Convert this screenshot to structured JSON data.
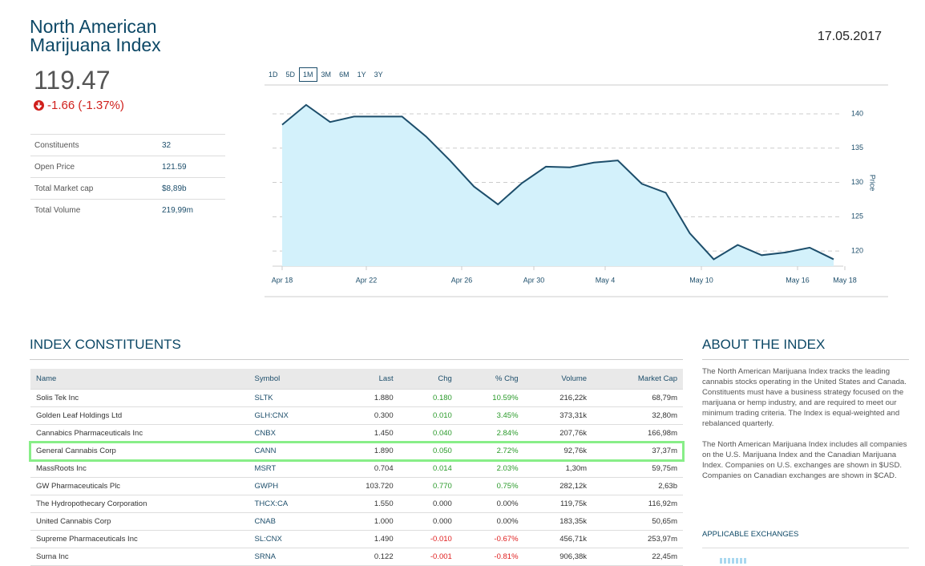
{
  "header": {
    "title": "North American Marijuana Index",
    "date": "17.05.2017",
    "price": "119.47",
    "change": "-1.66 (-1.37%)"
  },
  "stats": [
    {
      "label": "Constituents",
      "value": "32"
    },
    {
      "label": "Open Price",
      "value": "121.59"
    },
    {
      "label": "Total Market cap",
      "value": "$8,89b"
    },
    {
      "label": "Total Volume",
      "value": "219,99m"
    }
  ],
  "ranges": [
    "1D",
    "5D",
    "1M",
    "3M",
    "6M",
    "1Y",
    "3Y"
  ],
  "chart_data": {
    "type": "line",
    "values": [
      138.4,
      141.3,
      138.8,
      139.6,
      139.6,
      139.6,
      136.7,
      133.2,
      129.4,
      126.8,
      129.9,
      132.3,
      132.2,
      132.9,
      133.2,
      129.8,
      128.5,
      122.6,
      118.8,
      120.9,
      119.4,
      119.8,
      120.5,
      118.8
    ],
    "xticks": [
      "Apr 18",
      "Apr 22",
      "Apr 26",
      "Apr 30",
      "May 4",
      "May 10",
      "May 16",
      "May 18"
    ],
    "ylim": [
      117.8,
      144.2
    ],
    "yticks": [
      120,
      125,
      130,
      135,
      140
    ],
    "y_label": "Price",
    "color": "#1d4e6b",
    "fill": "#d3f1fb",
    "grid": true
  },
  "constituents": {
    "title": "INDEX CONSTITUENTS",
    "columns": [
      "Name",
      "Symbol",
      "Last",
      "Chg",
      "% Chg",
      "Volume",
      "Market Cap"
    ],
    "rows": [
      [
        "Solis Tek Inc",
        "SLTK",
        "1.880",
        "0.180",
        "10.59%",
        "216,22k",
        "68,79m"
      ],
      [
        "Golden Leaf Holdings Ltd",
        "GLH:CNX",
        "0.300",
        "0.010",
        "3.45%",
        "373,31k",
        "32,80m"
      ],
      [
        "Cannabics Pharmaceuticals Inc",
        "CNBX",
        "1.450",
        "0.040",
        "2.84%",
        "207,76k",
        "166,98m"
      ],
      [
        "General Cannabis Corp",
        "CANN",
        "1.890",
        "0.050",
        "2.72%",
        "92,76k",
        "37,37m"
      ],
      [
        "MassRoots Inc",
        "MSRT",
        "0.704",
        "0.014",
        "2.03%",
        "1,30m",
        "59,75m"
      ],
      [
        "GW Pharmaceuticals Plc",
        "GWPH",
        "103.720",
        "0.770",
        "0.75%",
        "282,12k",
        "2,63b"
      ],
      [
        "The Hydropothecary Corporation",
        "THCX:CA",
        "1.550",
        "0.000",
        "0.00%",
        "119,75k",
        "116,92m"
      ],
      [
        "United Cannabis Corp",
        "CNAB",
        "1.000",
        "0.000",
        "0.00%",
        "183,35k",
        "50,65m"
      ],
      [
        "Supreme Pharmaceuticals Inc",
        "SL:CNX",
        "1.490",
        "-0.010",
        "-0.67%",
        "456,71k",
        "253,97m"
      ],
      [
        "Surna Inc",
        "SRNA",
        "0.122",
        "-0.001",
        "-0.81%",
        "906,38k",
        "22,45m"
      ]
    ]
  },
  "about": {
    "title": "ABOUT THE INDEX",
    "paragraphs": [
      "The North American Marijuana Index tracks the leading cannabis stocks operating in the United States and Canada. Constituents must have a business strategy focused on the marijuana or hemp industry, and are required to meet our minimum trading criteria. The Index is equal-weighted and rebalanced quarterly.",
      "The North American Marijuana Index includes all companies on the U.S. Marijuana Index and the Canadian Marijuana Index. Companies on U.S. exchanges are shown in $USD. Companies on Canadian exchanges are shown in $CAD."
    ],
    "exchanges_title": "APPLICABLE EXCHANGES"
  }
}
